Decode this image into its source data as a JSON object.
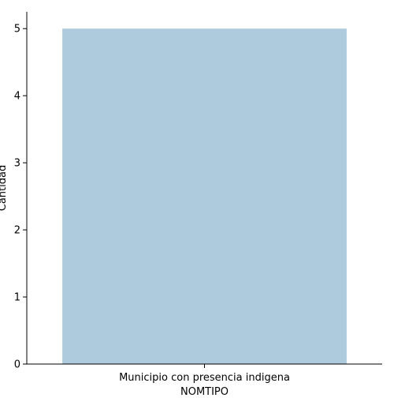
{
  "chart_data": {
    "type": "bar",
    "title": "",
    "xlabel": "NOMTIPO",
    "ylabel": "Cantidad",
    "categories": [
      "Municipio con presencia indigena"
    ],
    "values": [
      5
    ],
    "ylim": [
      0,
      5.25
    ],
    "yticks": [
      0,
      1,
      2,
      3,
      4,
      5
    ],
    "grid": false,
    "legend": "none",
    "bar_color": "#aecbdd",
    "axis_color": "#000000"
  }
}
